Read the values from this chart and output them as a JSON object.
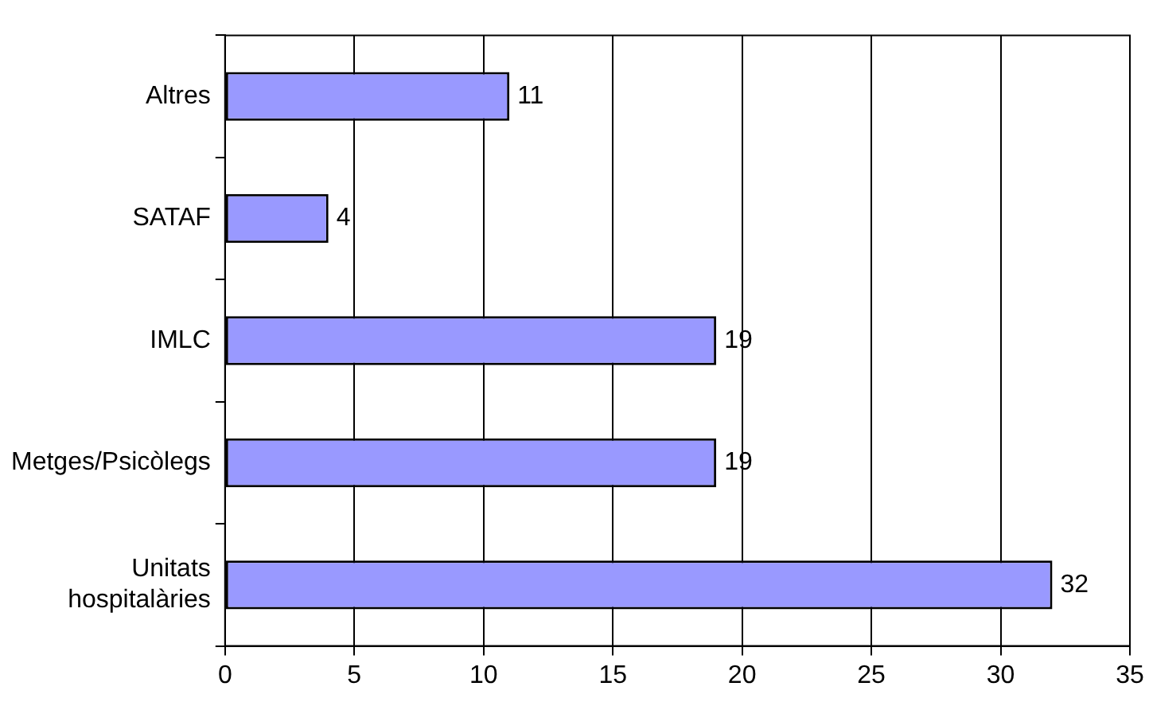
{
  "chart_data": {
    "type": "bar",
    "orientation": "horizontal",
    "categories": [
      "Altres",
      "SATAF",
      "IMLC",
      "Metges/Psicòlegs",
      "Unitats hospitalàries"
    ],
    "values": [
      11,
      4,
      19,
      19,
      32
    ],
    "color": "#9999ff",
    "xlim": [
      0,
      35
    ],
    "xticks": [
      0,
      5,
      10,
      15,
      20,
      25,
      30,
      35
    ],
    "grid": "x",
    "data_labels": true,
    "legend": false
  }
}
